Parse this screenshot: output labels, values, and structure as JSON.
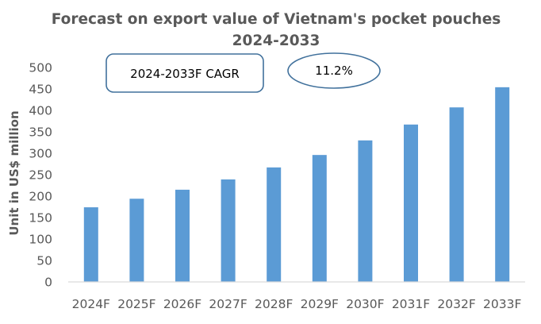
{
  "chart_data": {
    "type": "bar",
    "title_line1": "Forecast on export value of Vietnam's pocket pouches",
    "title_line2": "2024-2033",
    "xlabel": "",
    "ylabel": "Unit in US$ million",
    "categories": [
      "2024F",
      "2025F",
      "2026F",
      "2027F",
      "2028F",
      "2029F",
      "2030F",
      "2031F",
      "2032F",
      "2033F"
    ],
    "values": [
      174,
      194,
      215,
      239,
      267,
      296,
      330,
      367,
      407,
      454
    ],
    "ylim": [
      0,
      500
    ],
    "yticks": [
      "0",
      "50",
      "100",
      "150",
      "200",
      "250",
      "300",
      "350",
      "400",
      "450",
      "500"
    ],
    "grid": false,
    "legend": "none",
    "bar_color": "#5B9BD5",
    "annotations": {
      "cagr_label": "2024-2033F CAGR",
      "cagr_value": "11.2%",
      "border_color": "#41719C"
    }
  }
}
